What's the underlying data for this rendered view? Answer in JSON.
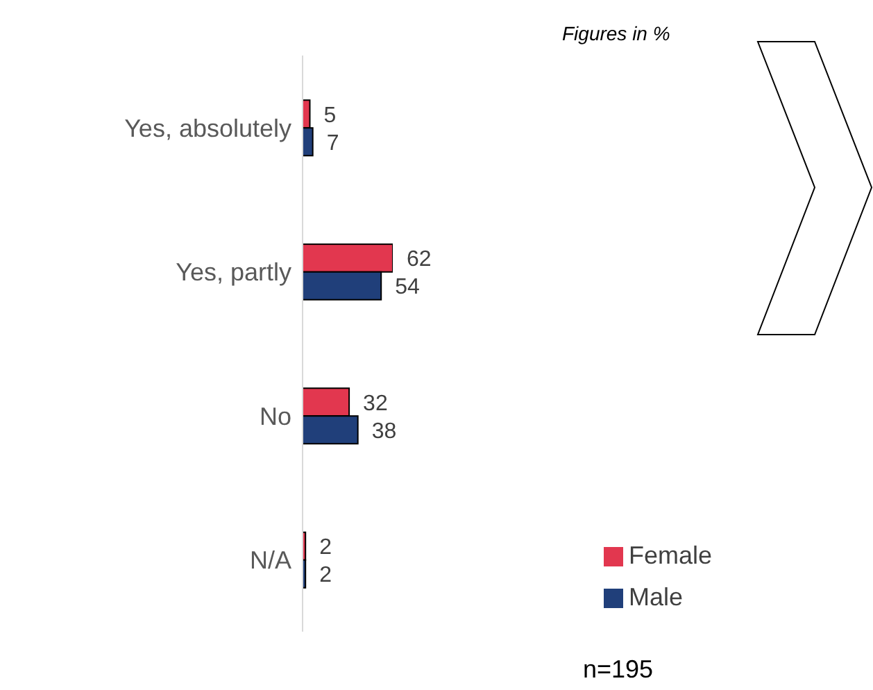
{
  "chart_data": {
    "type": "bar",
    "orientation": "horizontal",
    "xlim": [
      0,
      62
    ],
    "data_labels": true,
    "legend": "bottom right",
    "categories": [
      "Yes, absolutely",
      "Yes, partly",
      "No",
      "N/A"
    ],
    "series": [
      {
        "name": "Female",
        "color": "#e2374f",
        "values": [
          5,
          62,
          32,
          2
        ]
      },
      {
        "name": "Male",
        "color": "#203f7a",
        "values": [
          7,
          54,
          38,
          2
        ]
      }
    ],
    "annotations": [
      "Figures in %",
      "n=195"
    ]
  }
}
